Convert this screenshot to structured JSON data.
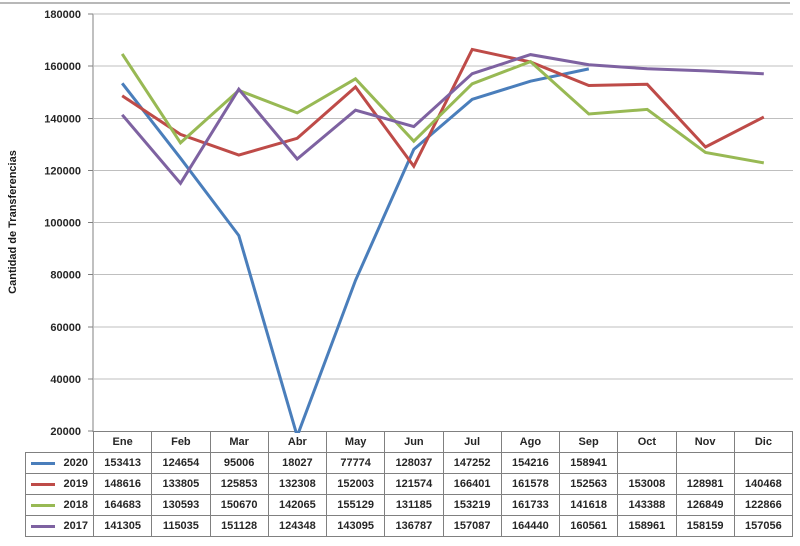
{
  "chart_data": {
    "type": "line",
    "title": "",
    "xlabel": "",
    "ylabel": "Cantidad de Transferencias",
    "ylim": [
      20000,
      180000
    ],
    "ytick_step": 20000,
    "grid": true,
    "legend_position": "data-table-left-column",
    "categories": [
      "Ene",
      "Feb",
      "Mar",
      "Abr",
      "May",
      "Jun",
      "Jul",
      "Ago",
      "Sep",
      "Oct",
      "Nov",
      "Dic"
    ],
    "series": [
      {
        "name": "2020",
        "color": "#4A7EBB",
        "values": [
          153413,
          124654,
          95006,
          18027,
          77774,
          128037,
          147252,
          154216,
          158941,
          null,
          null,
          null
        ]
      },
      {
        "name": "2019",
        "color": "#BE4B48",
        "values": [
          148616,
          133805,
          125853,
          132308,
          152003,
          121574,
          166401,
          161578,
          152563,
          153008,
          128981,
          140468
        ]
      },
      {
        "name": "2018",
        "color": "#98B954",
        "values": [
          164683,
          130593,
          150670,
          142065,
          155129,
          131185,
          153219,
          161733,
          141618,
          143388,
          126849,
          122866
        ]
      },
      {
        "name": "2017",
        "color": "#7E62A1",
        "values": [
          141305,
          115035,
          151128,
          124348,
          143095,
          136787,
          157087,
          164440,
          160561,
          158961,
          158159,
          157056
        ]
      }
    ],
    "colors": {
      "grid": "#BFBFBF",
      "axis": "#808080",
      "text": "#262626",
      "table_border": "#808080",
      "chart_border": "#B8B8B8"
    }
  }
}
